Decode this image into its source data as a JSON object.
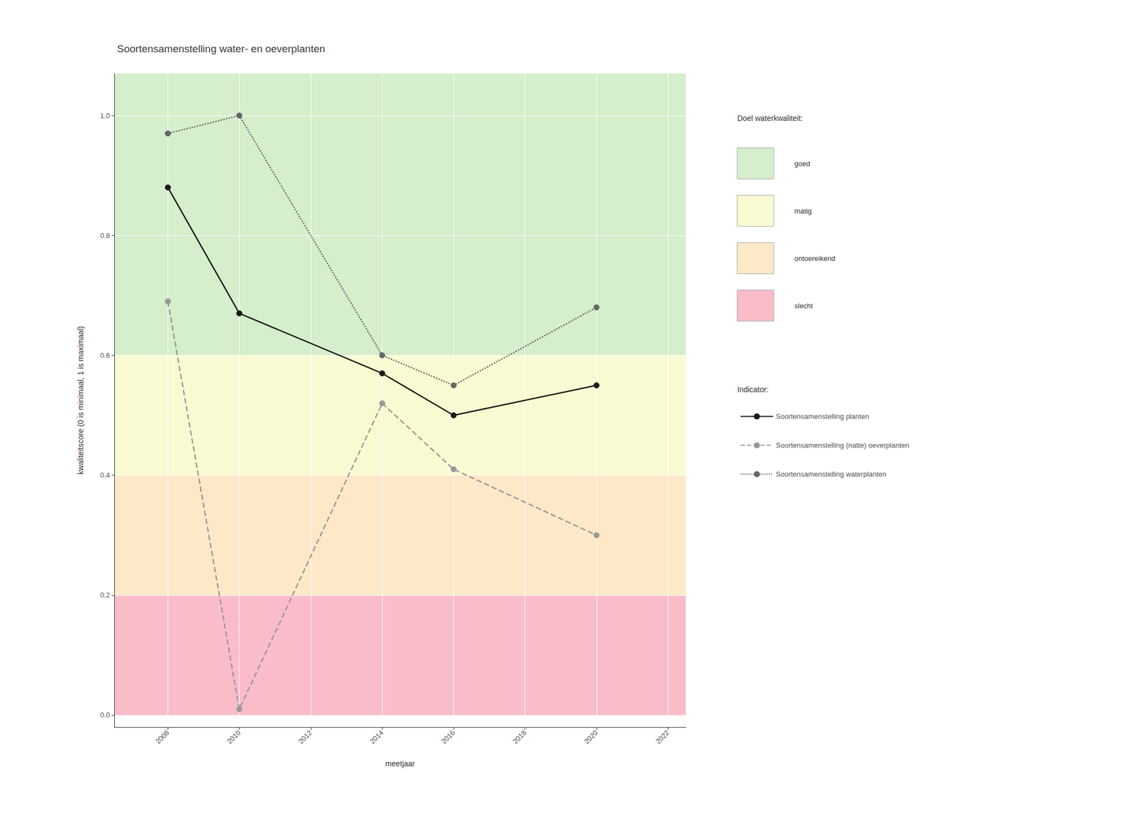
{
  "chart_data": {
    "type": "line",
    "title": "Soortensamenstelling water- en oeverplanten",
    "x_label": "meetjaar",
    "y_label": "kwaliteitscore (0 is minimaal, 1 is maximaal)",
    "xlim": [
      2006.5,
      2022.5
    ],
    "ylim": [
      -0.02,
      1.07
    ],
    "xticks": [
      2008,
      2010,
      2012,
      2014,
      2016,
      2018,
      2020,
      2022
    ],
    "yticks": [
      {
        "value": 0,
        "label": "0.0"
      },
      0.2,
      0.4,
      0.6,
      0.8,
      {
        "value": 1,
        "label": "1.0"
      }
    ],
    "grid": true,
    "bands_title": "Doel waterkwaliteit:",
    "bands": [
      {
        "label": "goed",
        "ymin": 0.6,
        "ymax": 1.07,
        "color": "#d5eecb"
      },
      {
        "label": "matig",
        "ymin": 0.4,
        "ymax": 0.6,
        "color": "#fafad2"
      },
      {
        "label": "ontoereikend",
        "ymin": 0.2,
        "ymax": 0.4,
        "color": "#fde8c8"
      },
      {
        "label": "slecht",
        "ymin": 0.0,
        "ymax": 0.2,
        "color": "#fbbcca"
      }
    ],
    "series_title": "Indicator:",
    "series": [
      {
        "name": "Soortensamenstelling planten",
        "color": "#1a1a1a",
        "line_style": "solid",
        "marker": "circle",
        "x": [
          2008,
          2010,
          2014,
          2016,
          2020
        ],
        "values": [
          0.88,
          0.67,
          0.57,
          0.5,
          0.55
        ]
      },
      {
        "name": "Soortensamenstelling (natte) oeverplanten",
        "color": "#999999",
        "line_style": "dashed",
        "marker": "circle",
        "x": [
          2008,
          2010,
          2014,
          2016,
          2020
        ],
        "values": [
          0.69,
          0.01,
          0.52,
          0.41,
          0.3
        ]
      },
      {
        "name": "Soortensamenstelling waterplanten",
        "color": "#666666",
        "line_style": "dotted",
        "marker": "circle",
        "x": [
          2008,
          2010,
          2014,
          2016,
          2020
        ],
        "values": [
          0.97,
          1.0,
          0.6,
          0.55,
          0.68
        ]
      }
    ]
  }
}
